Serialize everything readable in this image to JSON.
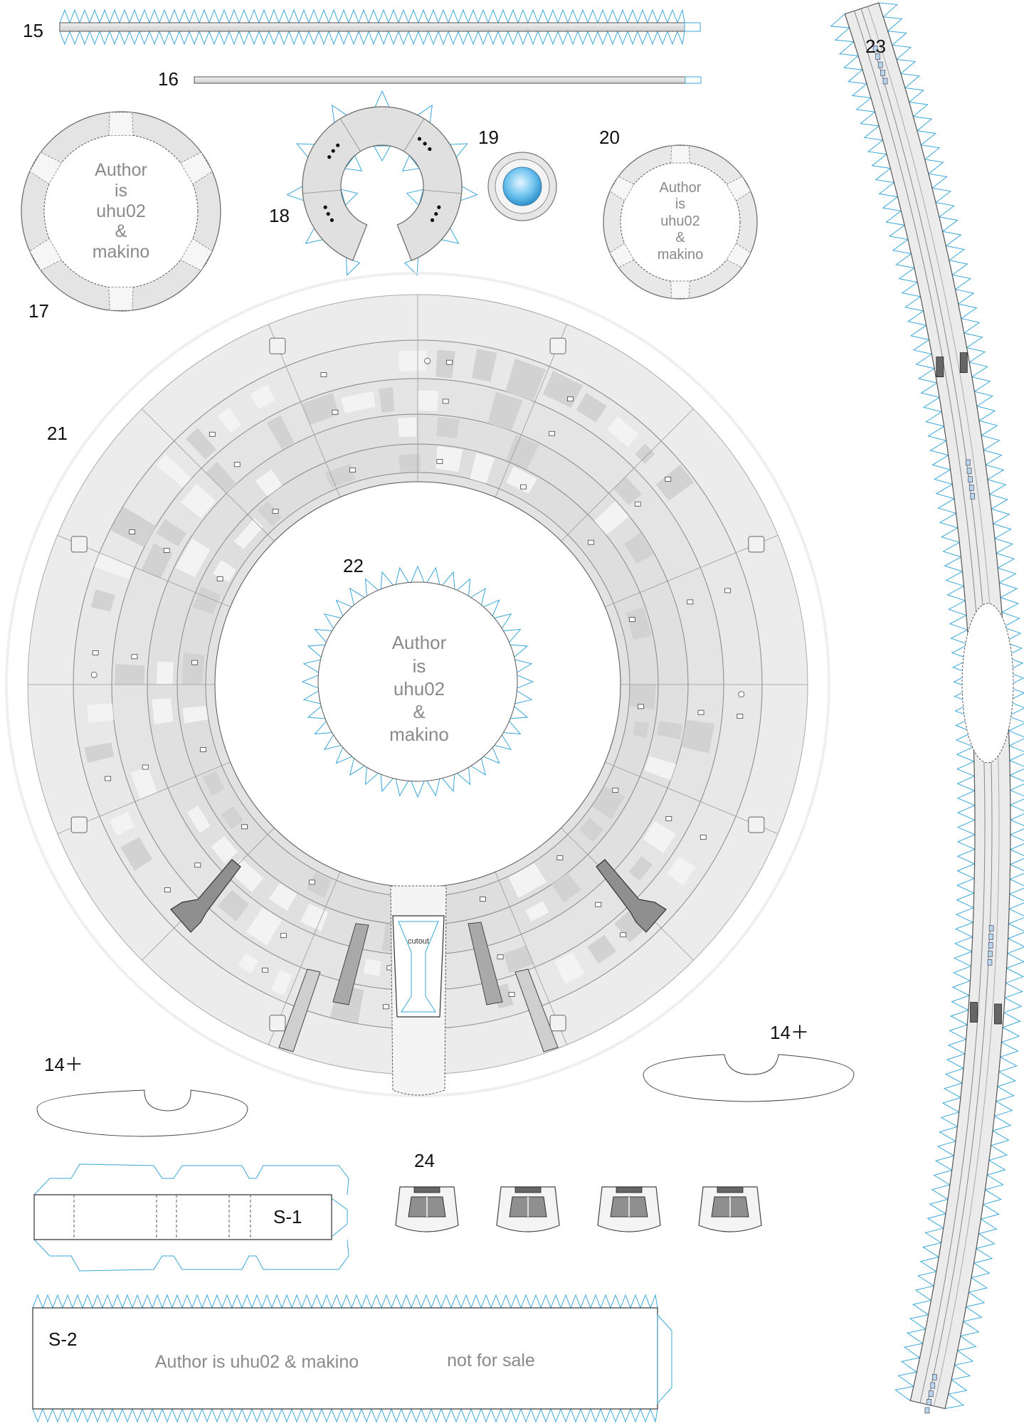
{
  "parts": {
    "p15": "15",
    "p16": "16",
    "p17": "17",
    "p18": "18",
    "p19": "19",
    "p20": "20",
    "p21": "21",
    "p22": "22",
    "p23": "23",
    "p24": "24",
    "p14a": "14＋",
    "p14b": "14＋",
    "s1": "S-1",
    "s2": "S-2"
  },
  "author": {
    "line1": "Author",
    "line2": "is",
    "line3": "uhu02",
    "line4": "&",
    "line5": "makino",
    "full": "Author is uhu02 & makino",
    "notice": "not for sale"
  },
  "cutout_label": "cutout",
  "colors": {
    "tab": "#3aa7d8",
    "part_fill": "#e2e2e2",
    "outline": "#555555",
    "light_fill": "#f2f2f2",
    "lens": "#6ec3ef"
  }
}
